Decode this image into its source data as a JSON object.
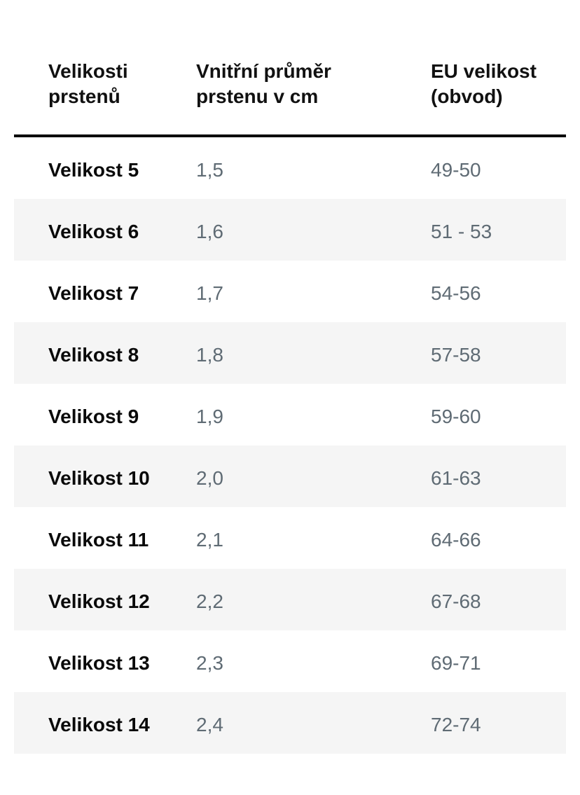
{
  "table": {
    "headers": [
      "Velikosti\nprstenů",
      "Vnitřní průměr\nprstenu v cm",
      "EU velikost\n(obvod)"
    ],
    "rows": [
      {
        "size": "Velikost 5",
        "diameter": "1,5",
        "eu": "49-50"
      },
      {
        "size": "Velikost 6",
        "diameter": "1,6",
        "eu": "51 - 53"
      },
      {
        "size": "Velikost 7",
        "diameter": "1,7",
        "eu": "54-56"
      },
      {
        "size": "Velikost 8",
        "diameter": "1,8",
        "eu": "57-58"
      },
      {
        "size": "Velikost 9",
        "diameter": "1,9",
        "eu": "59-60"
      },
      {
        "size": "Velikost 10",
        "diameter": "2,0",
        "eu": "61-63"
      },
      {
        "size": "Velikost 11",
        "diameter": "2,1",
        "eu": "64-66"
      },
      {
        "size": "Velikost 12",
        "diameter": "2,2",
        "eu": "67-68"
      },
      {
        "size": "Velikost 13",
        "diameter": "2,3",
        "eu": "69-71"
      },
      {
        "size": "Velikost 14",
        "diameter": "2,4",
        "eu": "72-74"
      }
    ]
  },
  "colors": {
    "header_text": "#111111",
    "size_text": "#0a0a0a",
    "value_text": "#5f6b74",
    "stripe": "#f5f5f5",
    "rule": "#000000"
  }
}
